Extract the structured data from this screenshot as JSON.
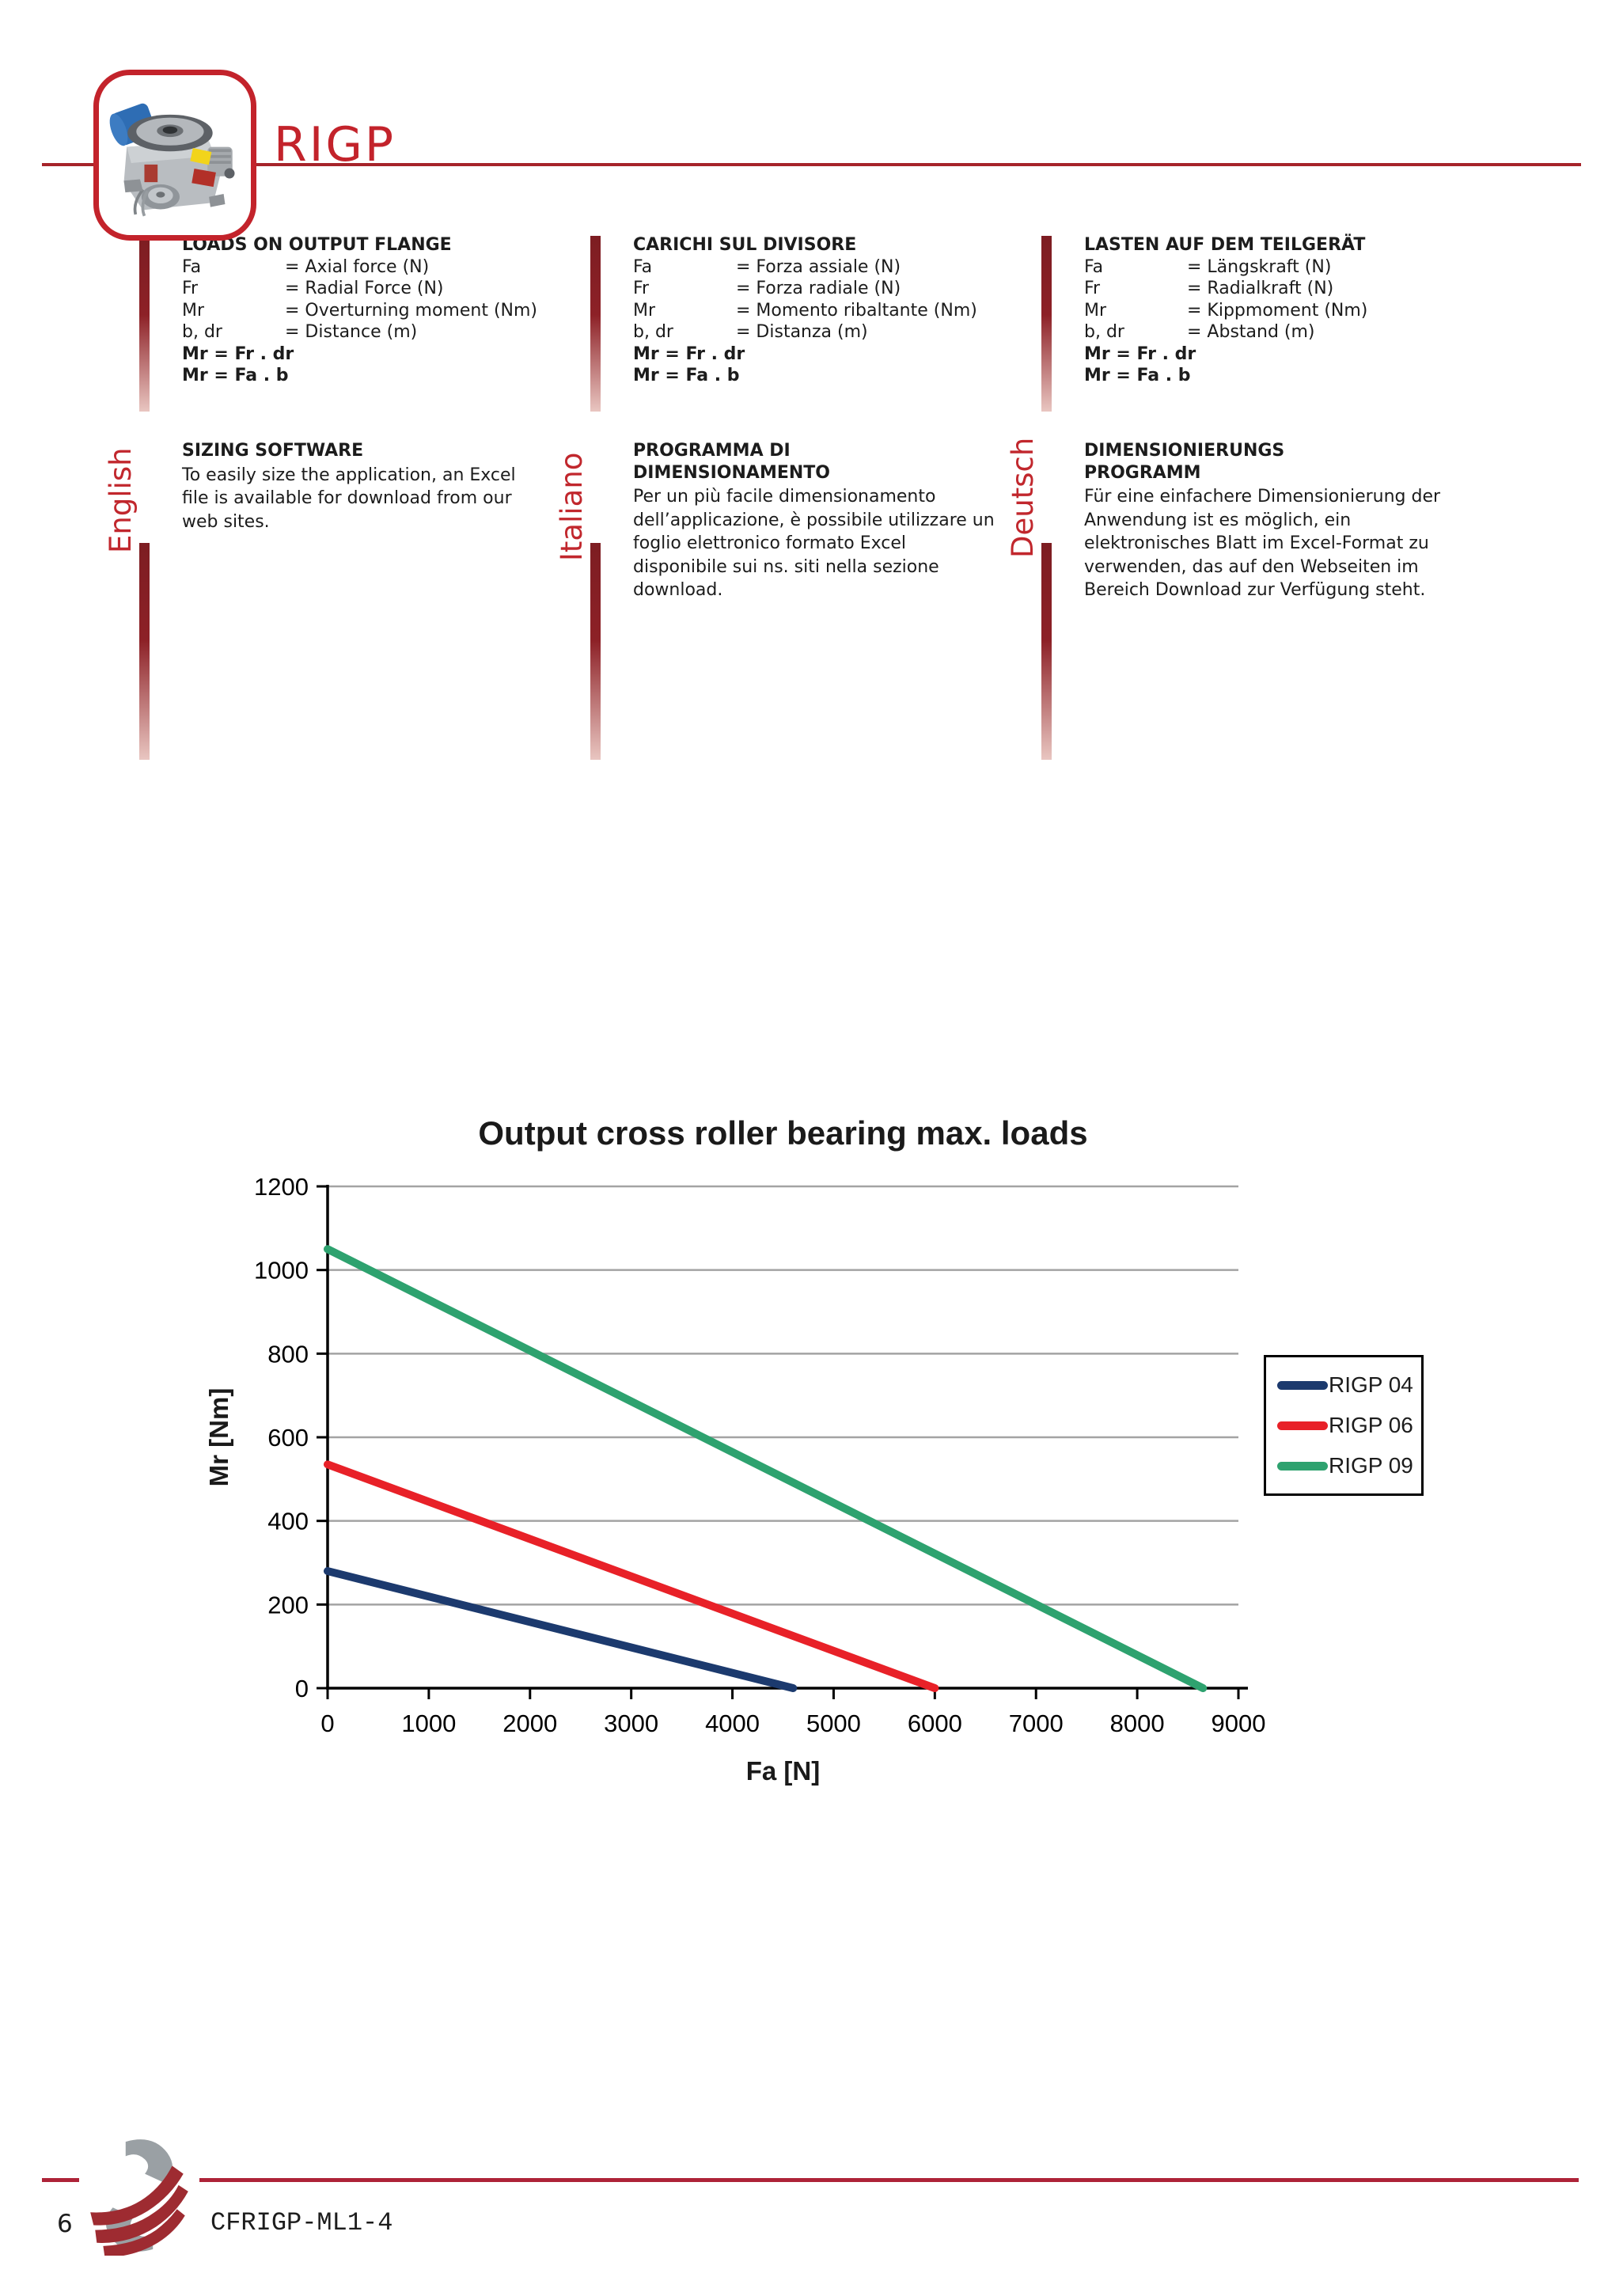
{
  "header": {
    "title": "RIGP"
  },
  "columns": [
    {
      "language": "English",
      "loads_heading": "LOADS ON OUTPUT FLANGE",
      "definitions": [
        {
          "term": "Fa",
          "value": "= Axial force (N)"
        },
        {
          "term": "Fr",
          "value": "= Radial Force (N)"
        },
        {
          "term": "Mr",
          "value": "= Overturning moment (Nm)"
        },
        {
          "term": "b, dr",
          "value": "= Distance (m)"
        }
      ],
      "formulas": [
        "Mr = Fr . dr",
        "Mr = Fa . b"
      ],
      "software_heading": "SIZING SOFTWARE",
      "software_text": "To easily size the application, an Excel file is available for download from our web sites."
    },
    {
      "language": "Italiano",
      "loads_heading": "CARICHI SUL DIVISORE",
      "definitions": [
        {
          "term": "Fa",
          "value": "= Forza assiale (N)"
        },
        {
          "term": "Fr",
          "value": "= Forza radiale (N)"
        },
        {
          "term": "Mr",
          "value": "= Momento ribaltante (Nm)"
        },
        {
          "term": "b, dr",
          "value": "= Distanza (m)"
        }
      ],
      "formulas": [
        "Mr = Fr . dr",
        "Mr = Fa . b"
      ],
      "software_heading": "PROGRAMMA DI\nDIMENSIONAMENTO",
      "software_text": "Per un più facile dimensionamento dell’applicazione, è possibile utilizzare un foglio elettronico formato Excel disponibile sui ns. siti nella sezione download."
    },
    {
      "language": "Deutsch",
      "loads_heading": "LASTEN AUF DEM TEILGERÄT",
      "definitions": [
        {
          "term": "Fa",
          "value": "= Längskraft (N)"
        },
        {
          "term": "Fr",
          "value": "= Radialkraft (N)"
        },
        {
          "term": "Mr",
          "value": "= Kippmoment (Nm)"
        },
        {
          "term": "b, dr",
          "value": "= Abstand (m)"
        }
      ],
      "formulas": [
        "Mr = Fr . dr",
        "Mr = Fa . b"
      ],
      "software_heading": "DIMENSIONIERUNGS\nPROGRAMM",
      "software_text": "Für eine einfachere Dimensionierung der Anwendung ist es möglich, ein elektronisches Blatt im Excel-Format zu verwenden, das auf den Webseiten im Bereich Download zur Verfügung steht."
    }
  ],
  "chart_data": {
    "type": "line",
    "title": "Output cross roller bearing max. loads",
    "xlabel": "Fa  [N]",
    "ylabel": "Mr  [Nm]",
    "xlim": [
      0,
      9000
    ],
    "ylim": [
      0,
      1200
    ],
    "x_ticks": [
      0,
      1000,
      2000,
      3000,
      4000,
      5000,
      6000,
      7000,
      8000,
      9000
    ],
    "y_ticks": [
      0,
      200,
      400,
      600,
      800,
      1000,
      1200
    ],
    "grid": true,
    "legend_position": "right",
    "series": [
      {
        "name": "RIGP 04",
        "color": "#1c3a6e",
        "points": [
          [
            0,
            280
          ],
          [
            4600,
            0
          ]
        ]
      },
      {
        "name": "RIGP 06",
        "color": "#e82128",
        "points": [
          [
            0,
            535
          ],
          [
            6000,
            0
          ]
        ]
      },
      {
        "name": "RIGP 09",
        "color": "#2ea26f",
        "points": [
          [
            0,
            1050
          ],
          [
            8650,
            0
          ]
        ]
      }
    ]
  },
  "footer": {
    "page_number": "6",
    "doc_code": "CFRIGP-ML1-4"
  },
  "colors": {
    "accent_red": "#c3232b",
    "rule_red": "#a6242a",
    "footer_red": "#ae2338",
    "lang_red": "#c1272d",
    "grid_gray": "#a3a3a3"
  }
}
